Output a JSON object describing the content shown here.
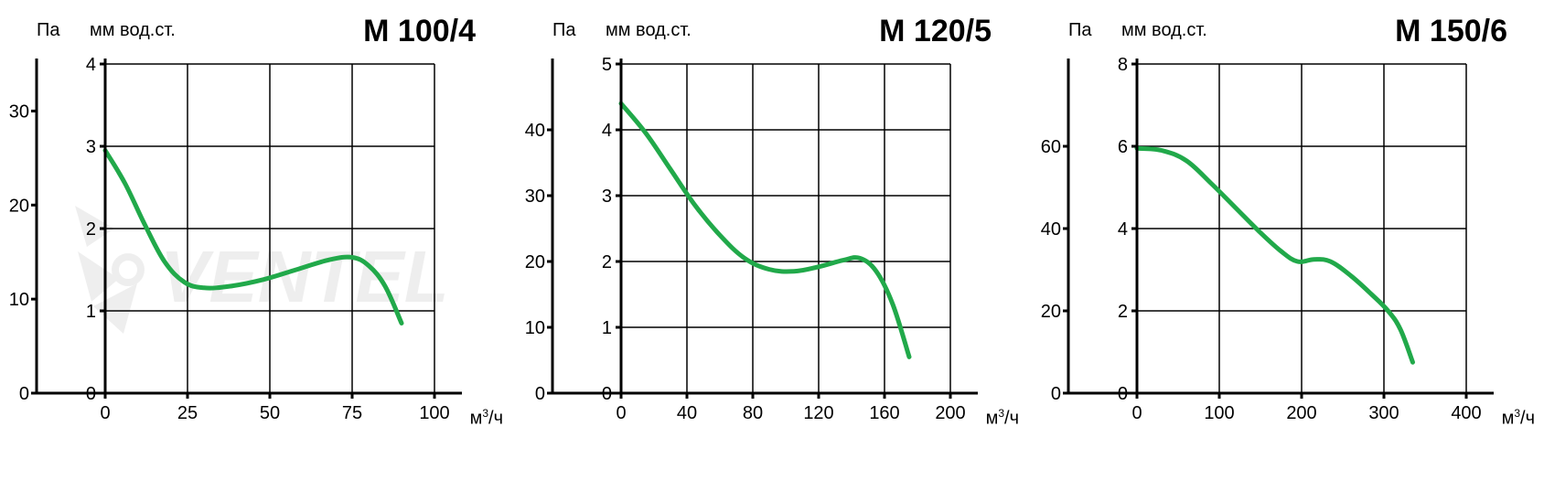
{
  "panels": [
    {
      "title": "M 100/4",
      "y1_label": "Па",
      "y2_label": "мм вод.ст.",
      "x_label": "м³/ч",
      "xlim": [
        0,
        100
      ],
      "xtick_step": 25,
      "xticks": [
        0,
        25,
        50,
        75,
        100
      ],
      "y1_lim": [
        0,
        35
      ],
      "y1_ticks": [
        0,
        10,
        20,
        30
      ],
      "y2_lim": [
        0,
        4
      ],
      "y2_ticks": [
        0,
        1,
        2,
        3,
        4
      ],
      "grid_x_lines": [
        0,
        25,
        50,
        75,
        100
      ],
      "grid_y2_lines": [
        0,
        1,
        2,
        3,
        4
      ],
      "curve_color": "#21a94a",
      "curve_width": 5,
      "background_color": "#ffffff",
      "axis_color": "#000000",
      "grid_color": "#000000",
      "label_fontsize": 20,
      "title_fontsize": 34,
      "series": [
        {
          "x": 0,
          "y2": 2.95
        },
        {
          "x": 6,
          "y2": 2.55
        },
        {
          "x": 12,
          "y2": 2.05
        },
        {
          "x": 18,
          "y2": 1.6
        },
        {
          "x": 24,
          "y2": 1.35
        },
        {
          "x": 30,
          "y2": 1.28
        },
        {
          "x": 38,
          "y2": 1.3
        },
        {
          "x": 48,
          "y2": 1.38
        },
        {
          "x": 58,
          "y2": 1.5
        },
        {
          "x": 68,
          "y2": 1.62
        },
        {
          "x": 75,
          "y2": 1.65
        },
        {
          "x": 80,
          "y2": 1.55
        },
        {
          "x": 85,
          "y2": 1.3
        },
        {
          "x": 90,
          "y2": 0.85
        }
      ]
    },
    {
      "title": "M 120/5",
      "y1_label": "Па",
      "y2_label": "мм вод.ст.",
      "x_label": "м³/ч",
      "xlim": [
        0,
        200
      ],
      "xtick_step": 40,
      "xticks": [
        0,
        40,
        80,
        120,
        160,
        200
      ],
      "y1_lim": [
        0,
        50
      ],
      "y1_ticks": [
        0,
        10,
        20,
        30,
        40
      ],
      "y2_lim": [
        0,
        5
      ],
      "y2_ticks": [
        0,
        1,
        2,
        3,
        4,
        5
      ],
      "grid_x_lines": [
        0,
        40,
        80,
        120,
        160,
        200
      ],
      "grid_y2_lines": [
        0,
        1,
        2,
        3,
        4,
        5
      ],
      "curve_color": "#21a94a",
      "curve_width": 5,
      "background_color": "#ffffff",
      "axis_color": "#000000",
      "grid_color": "#000000",
      "label_fontsize": 20,
      "title_fontsize": 34,
      "series": [
        {
          "x": 0,
          "y2": 4.4
        },
        {
          "x": 15,
          "y2": 3.95
        },
        {
          "x": 30,
          "y2": 3.4
        },
        {
          "x": 45,
          "y2": 2.85
        },
        {
          "x": 60,
          "y2": 2.4
        },
        {
          "x": 75,
          "y2": 2.05
        },
        {
          "x": 90,
          "y2": 1.88
        },
        {
          "x": 105,
          "y2": 1.85
        },
        {
          "x": 120,
          "y2": 1.92
        },
        {
          "x": 135,
          "y2": 2.02
        },
        {
          "x": 145,
          "y2": 2.05
        },
        {
          "x": 155,
          "y2": 1.85
        },
        {
          "x": 165,
          "y2": 1.35
        },
        {
          "x": 175,
          "y2": 0.55
        }
      ]
    },
    {
      "title": "M 150/6",
      "y1_label": "Па",
      "y2_label": "мм вод.ст.",
      "x_label": "м³/ч",
      "xlim": [
        0,
        400
      ],
      "xtick_step": 100,
      "xticks": [
        0,
        100,
        200,
        300,
        400
      ],
      "y1_lim": [
        0,
        80
      ],
      "y1_ticks": [
        0,
        20,
        40,
        60
      ],
      "y2_lim": [
        0,
        8
      ],
      "y2_ticks": [
        0,
        2,
        4,
        6,
        8
      ],
      "grid_x_lines": [
        0,
        100,
        200,
        300,
        400
      ],
      "grid_y2_lines": [
        0,
        2,
        4,
        6,
        8
      ],
      "curve_color": "#21a94a",
      "curve_width": 5,
      "background_color": "#ffffff",
      "axis_color": "#000000",
      "grid_color": "#000000",
      "label_fontsize": 20,
      "title_fontsize": 34,
      "series": [
        {
          "x": 0,
          "y2": 5.95
        },
        {
          "x": 30,
          "y2": 5.9
        },
        {
          "x": 60,
          "y2": 5.65
        },
        {
          "x": 90,
          "y2": 5.1
        },
        {
          "x": 120,
          "y2": 4.5
        },
        {
          "x": 150,
          "y2": 3.9
        },
        {
          "x": 175,
          "y2": 3.45
        },
        {
          "x": 195,
          "y2": 3.2
        },
        {
          "x": 215,
          "y2": 3.25
        },
        {
          "x": 235,
          "y2": 3.2
        },
        {
          "x": 260,
          "y2": 2.85
        },
        {
          "x": 285,
          "y2": 2.4
        },
        {
          "x": 305,
          "y2": 2.0
        },
        {
          "x": 320,
          "y2": 1.55
        },
        {
          "x": 335,
          "y2": 0.75
        }
      ]
    }
  ],
  "watermark_text": "VENTEL"
}
